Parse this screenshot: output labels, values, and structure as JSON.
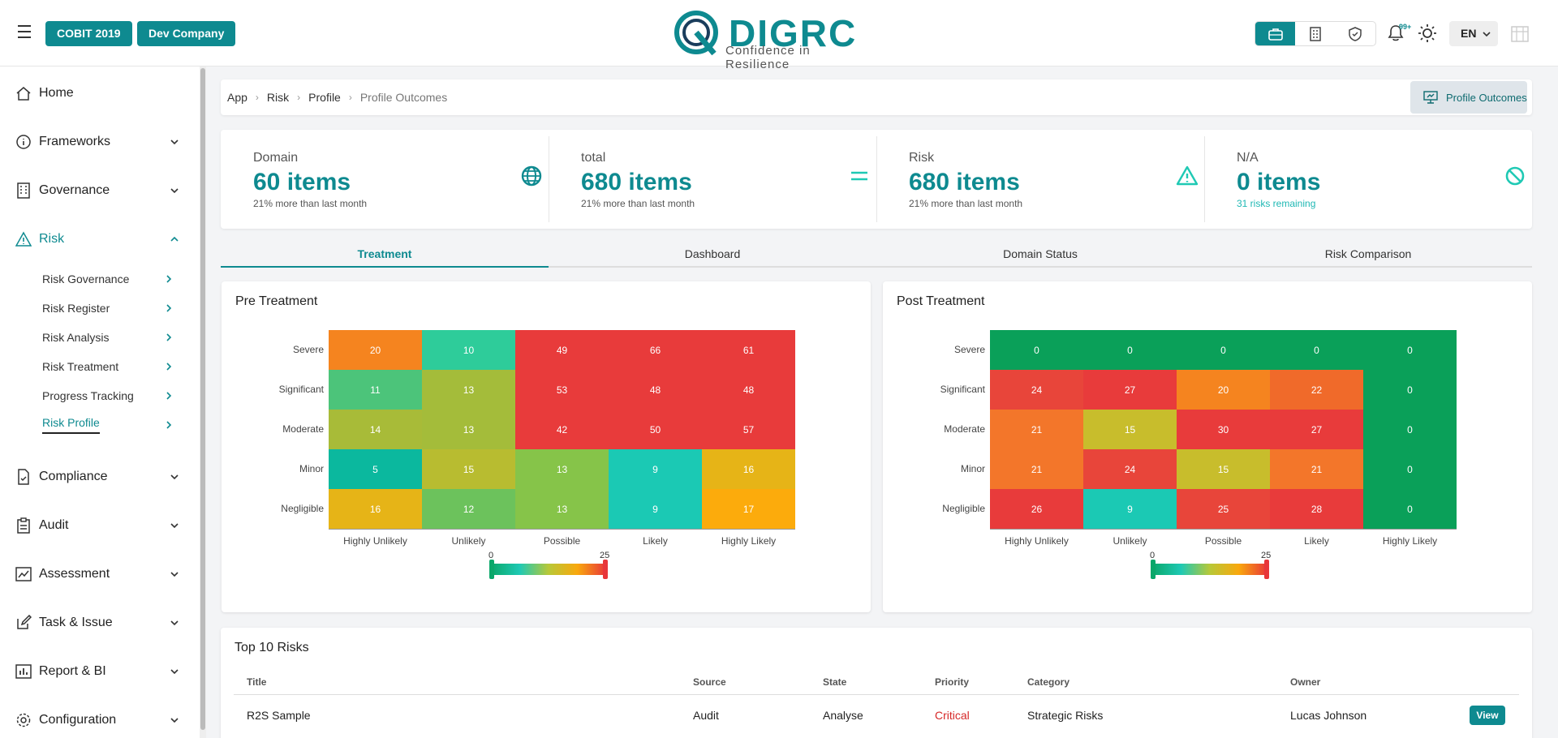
{
  "header": {
    "framework_label": "COBIT 2019",
    "company_label": "Dev Company",
    "logo_word": "DIGRC",
    "logo_tagline": "Confidence in Resilience",
    "notification_count": "99+",
    "language": "EN",
    "accent": "#0e8a90"
  },
  "sidebar": {
    "items": [
      {
        "label": "Home",
        "icon": "home-icon"
      },
      {
        "label": "Frameworks",
        "icon": "info-icon"
      },
      {
        "label": "Governance",
        "icon": "building-icon"
      },
      {
        "label": "Risk",
        "icon": "warning-icon"
      },
      {
        "label": "Compliance",
        "icon": "file-check-icon"
      },
      {
        "label": "Audit",
        "icon": "clipboard-icon"
      },
      {
        "label": "Assessment",
        "icon": "chart-icon"
      },
      {
        "label": "Task & Issue",
        "icon": "edit-icon"
      },
      {
        "label": "Report & BI",
        "icon": "bar-chart-icon"
      },
      {
        "label": "Configuration",
        "icon": "gear-icon"
      }
    ],
    "risk_sub": [
      "Risk Governance",
      "Risk Register",
      "Risk Analysis",
      "Risk Treatment",
      "Progress Tracking",
      "Risk Profile"
    ]
  },
  "breadcrumb": {
    "items": [
      "App",
      "Risk",
      "Profile",
      "Profile Outcomes"
    ],
    "action_label": "Profile Outcomes"
  },
  "stats": [
    {
      "title": "Domain",
      "value": "60 items",
      "sub": "21% more than last month",
      "icon": "globe-icon"
    },
    {
      "title": "total",
      "value": "680 items",
      "sub": "21% more than last month",
      "icon": "equals-icon"
    },
    {
      "title": "Risk",
      "value": "680 items",
      "sub": "21% more than last month",
      "icon": "warning-icon"
    },
    {
      "title": "N/A",
      "value": "0 items",
      "sub": "31 risks remaining",
      "icon": "ban-icon"
    }
  ],
  "tabs": [
    "Treatment",
    "Dashboard",
    "Domain Status",
    "Risk Comparison"
  ],
  "chart_data": [
    {
      "type": "heatmap",
      "title": "Pre Treatment",
      "rows": [
        "Severe",
        "Significant",
        "Moderate",
        "Minor",
        "Negligible"
      ],
      "columns": [
        "Highly Unlikely",
        "Unlikely",
        "Possible",
        "Likely",
        "Highly Likely"
      ],
      "values": [
        [
          20,
          10,
          49,
          66,
          61
        ],
        [
          11,
          13,
          53,
          48,
          48
        ],
        [
          14,
          13,
          42,
          50,
          57
        ],
        [
          5,
          15,
          13,
          9,
          16
        ],
        [
          16,
          12,
          13,
          9,
          17
        ]
      ],
      "colors": [
        [
          "#f5841f",
          "#2ecc9a",
          "#e83b3b",
          "#e83b3b",
          "#e83b3b"
        ],
        [
          "#4cc47a",
          "#a4bc3a",
          "#e83b3b",
          "#e83b3b",
          "#e83b3b"
        ],
        [
          "#a8bb38",
          "#a4bc3a",
          "#e83b3b",
          "#e83b3b",
          "#e83b3b"
        ],
        [
          "#0bb89e",
          "#b8bc30",
          "#86c449",
          "#1bc9b4",
          "#e6b417"
        ],
        [
          "#e6b417",
          "#6cc25c",
          "#86c449",
          "#1bc9b4",
          "#fcab0c"
        ]
      ],
      "scale_min": "0",
      "scale_max": "25"
    },
    {
      "type": "heatmap",
      "title": "Post Treatment",
      "rows": [
        "Severe",
        "Significant",
        "Moderate",
        "Minor",
        "Negligible"
      ],
      "columns": [
        "Highly Unlikely",
        "Unlikely",
        "Possible",
        "Likely",
        "Highly Likely"
      ],
      "values": [
        [
          0,
          0,
          0,
          0,
          0
        ],
        [
          24,
          27,
          20,
          22,
          0
        ],
        [
          21,
          15,
          30,
          27,
          0
        ],
        [
          21,
          24,
          15,
          21,
          0
        ],
        [
          26,
          9,
          25,
          28,
          0
        ]
      ],
      "colors": [
        [
          "#0aa059",
          "#0aa059",
          "#0aa059",
          "#0aa059",
          "#0aa059"
        ],
        [
          "#e8453a",
          "#e83b3b",
          "#f5841f",
          "#f06a2a",
          "#0aa059"
        ],
        [
          "#f3762a",
          "#c8bd2c",
          "#e83b3b",
          "#e83b3b",
          "#0aa059"
        ],
        [
          "#f3762a",
          "#e8453a",
          "#c8bd2c",
          "#f3762a",
          "#0aa059"
        ],
        [
          "#e83b3b",
          "#1bc9b4",
          "#e8453a",
          "#e83b3b",
          "#0aa059"
        ]
      ],
      "scale_min": "0",
      "scale_max": "25"
    }
  ],
  "top_risks": {
    "title": "Top 10 Risks",
    "columns": [
      "Title",
      "Source",
      "State",
      "Priority",
      "Category",
      "Owner"
    ],
    "rows": [
      {
        "title": "R2S Sample",
        "source": "Audit",
        "state": "Analyse",
        "priority": "Critical",
        "category": "Strategic Risks",
        "owner": "Lucas Johnson",
        "action": "View"
      }
    ],
    "priority_color": "#d62828"
  }
}
